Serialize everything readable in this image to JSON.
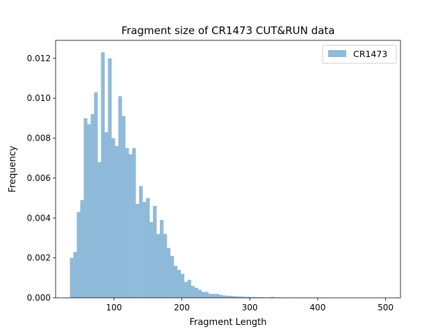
{
  "chart_data": {
    "type": "bar",
    "title": "Fragment size of CR1473 CUT&RUN data",
    "xlabel": "Fragment Length",
    "ylabel": "Frequency",
    "xlim": [
      14,
      522
    ],
    "ylim": [
      0,
      0.0129
    ],
    "xticks": [
      {
        "value": 100,
        "label": "100"
      },
      {
        "value": 200,
        "label": "200"
      },
      {
        "value": 300,
        "label": "300"
      },
      {
        "value": 400,
        "label": "400"
      },
      {
        "value": 500,
        "label": "500"
      }
    ],
    "yticks": [
      {
        "value": 0.0,
        "label": "0.000"
      },
      {
        "value": 0.002,
        "label": "0.002"
      },
      {
        "value": 0.004,
        "label": "0.004"
      },
      {
        "value": 0.006,
        "label": "0.006"
      },
      {
        "value": 0.008,
        "label": "0.008"
      },
      {
        "value": 0.01,
        "label": "0.010"
      },
      {
        "value": 0.012,
        "label": "0.012"
      }
    ],
    "grid": false,
    "legend": {
      "placement": "top-right",
      "entries": [
        "CR1473"
      ]
    },
    "series": [
      {
        "name": "CR1473",
        "color": "#8fbad9",
        "bin_start": 35,
        "bin_width": 5.1,
        "values": [
          0.002,
          0.0023,
          0.0043,
          0.0049,
          0.009,
          0.0087,
          0.0092,
          0.0103,
          0.0068,
          0.0123,
          0.0083,
          0.012,
          0.008,
          0.0076,
          0.0101,
          0.0091,
          0.0075,
          0.0072,
          0.0075,
          0.0047,
          0.0056,
          0.0048,
          0.005,
          0.0038,
          0.0046,
          0.0032,
          0.0039,
          0.0032,
          0.0025,
          0.0021,
          0.0016,
          0.0014,
          0.0012,
          0.0008,
          0.0009,
          0.0006,
          0.0005,
          0.0004,
          0.0003,
          0.0003,
          0.0002,
          0.0002,
          0.0002,
          0.00015,
          0.00012,
          0.0001,
          0.0001,
          8e-05,
          7e-05,
          6e-05,
          5e-05,
          5e-05,
          4e-05,
          4e-05,
          3e-05,
          3e-05,
          2e-05,
          2e-05,
          4e-05,
          2e-05,
          2e-05,
          1e-05,
          2e-05,
          1e-05,
          1e-05,
          1e-05,
          1e-05,
          1e-05,
          1e-05,
          0.0,
          0.0,
          0.0,
          0.0,
          0.0,
          0.0,
          0.0,
          0.0,
          0.0,
          0.0,
          0.0,
          0.0,
          0.0,
          0.0,
          0.0,
          0.0,
          0.0,
          0.0,
          0.0,
          0.0,
          0.0,
          0.0,
          0.0
        ]
      }
    ]
  }
}
